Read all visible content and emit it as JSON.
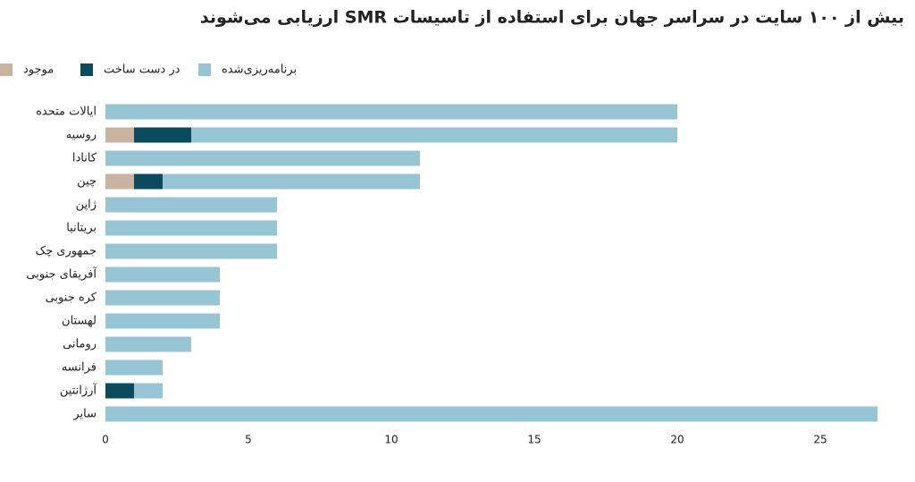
{
  "chart_data": {
    "type": "stacked-bar-horizontal",
    "title": "بیش از ۱۰۰ سایت در سراسر جهان برای استفاده از تاسیسات SMR ارزیابی می‌شوند",
    "categories": [
      "ایالات متحده",
      "روسیه",
      "کانادا",
      "چین",
      "ژاپن",
      "بریتانیا",
      "جمهوری چک",
      "آفریقای جنوبی",
      "کره جنوبی",
      "لهستان",
      "رومانی",
      "فرانسه",
      "آرژانتین",
      "سایر"
    ],
    "series": [
      {
        "name": "موجود",
        "color": "#c9b3a1",
        "values": [
          0,
          1,
          0,
          1,
          0,
          0,
          0,
          0,
          0,
          0,
          0,
          0,
          0,
          0
        ]
      },
      {
        "name": "در دست ساخت",
        "color": "#0c4a5d",
        "values": [
          0,
          2,
          0,
          1,
          0,
          0,
          0,
          0,
          0,
          0,
          0,
          0,
          1,
          0
        ]
      },
      {
        "name": "برنامه‌ریزی‌شده",
        "color": "#97c5d4",
        "values": [
          20,
          17,
          11,
          9,
          6,
          6,
          6,
          4,
          4,
          4,
          3,
          2,
          1,
          27
        ]
      }
    ],
    "xlim": [
      0,
      27
    ],
    "xticks": [
      0,
      5,
      10,
      15,
      20,
      25
    ],
    "legend": "top-left"
  }
}
